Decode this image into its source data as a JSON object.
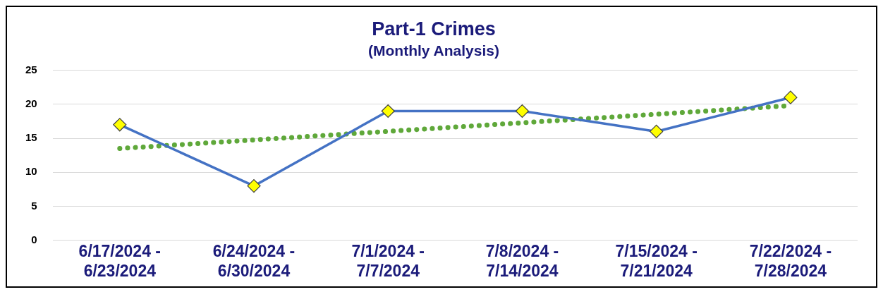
{
  "chart_data": {
    "type": "line",
    "title": "Part-1 Crimes",
    "subtitle": "(Monthly Analysis)",
    "categories": [
      "6/17/2024 - 6/23/2024",
      "6/24/2024 - 6/30/2024",
      "7/1/2024 - 7/7/2024",
      "7/8/2024 - 7/14/2024",
      "7/15/2024 - 7/21/2024",
      "7/22/2024 - 7/28/2024"
    ],
    "series": [
      {
        "color": "#4472c4",
        "values": [
          17,
          8,
          19,
          19,
          16,
          21
        ],
        "colors": [
          "#ffff00",
          "#ffff00",
          "#ffff00",
          "#ffff00",
          "#ffff00",
          "#ffff00"
        ],
        "marker": "diamond",
        "line_style": "solid"
      },
      {
        "type": "line",
        "color": "#5fa83a",
        "x": [
          "6/17/2024 - 6/23/2024",
          "7/22/2024 - 7/28/2024"
        ],
        "values": [
          13.5,
          19.8
        ],
        "marker": "none",
        "line_style": "dotted"
      }
    ],
    "ylim": [
      0,
      25
    ],
    "yticks": [
      0,
      5,
      10,
      15,
      20,
      25
    ],
    "grid": "y",
    "legend": false
  }
}
